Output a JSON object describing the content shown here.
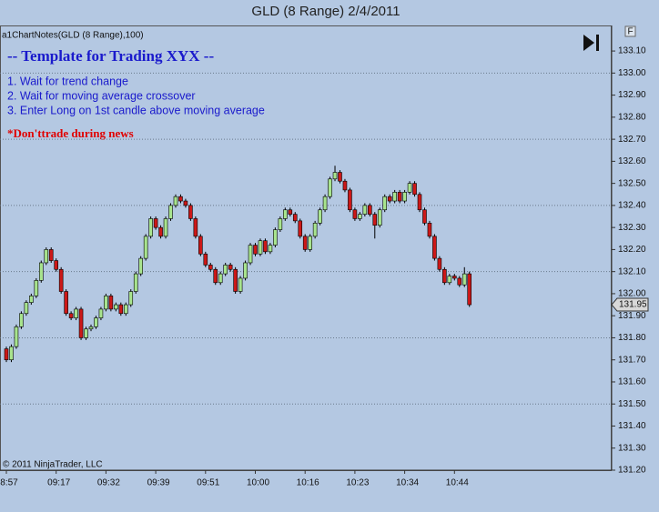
{
  "chart_data": {
    "type": "candlestick",
    "title": "GLD (8 Range)  2/4/2011",
    "indicator_label": "a1ChartNotes(GLD (8 Range),100)",
    "annotations": {
      "heading": "-- Template for Trading XYX --",
      "items": [
        "1. Wait for trend change",
        "2. Wait for moving average crossover",
        "3. Enter Long on 1st candle above moving average"
      ],
      "warning": "*Don'ttrade during news"
    },
    "copyright": "© 2011 NinjaTrader, LLC",
    "button_label": "F",
    "last_price": 131.95,
    "up_color": "#a8e48e",
    "down_color": "#cc1818",
    "categories": [
      "8:57",
      null,
      null,
      null,
      null,
      null,
      null,
      null,
      null,
      null,
      "09:17",
      null,
      null,
      null,
      null,
      null,
      null,
      null,
      null,
      null,
      "09:32",
      null,
      null,
      null,
      null,
      null,
      null,
      null,
      null,
      null,
      "09:39",
      null,
      null,
      null,
      null,
      null,
      null,
      null,
      null,
      null,
      "09:51",
      null,
      null,
      null,
      null,
      null,
      null,
      null,
      null,
      null,
      "10:00",
      null,
      null,
      null,
      null,
      null,
      null,
      null,
      null,
      null,
      "10:16",
      null,
      null,
      null,
      null,
      null,
      null,
      null,
      null,
      null,
      "10:23",
      null,
      null,
      null,
      null,
      null,
      null,
      null,
      null,
      null,
      "10:34",
      null,
      null,
      null,
      null,
      null,
      null,
      null,
      null,
      null,
      "10:44",
      null,
      null,
      null
    ],
    "open": [
      131.75,
      131.7,
      131.76,
      131.85,
      131.91,
      131.96,
      131.99,
      132.06,
      132.14,
      132.2,
      132.15,
      132.11,
      132.01,
      131.91,
      131.89,
      131.93,
      131.8,
      131.84,
      131.85,
      131.89,
      131.93,
      131.99,
      131.93,
      131.95,
      131.91,
      131.95,
      132.01,
      132.09,
      132.16,
      132.26,
      132.34,
      132.3,
      132.26,
      132.34,
      132.4,
      132.44,
      132.42,
      132.4,
      132.34,
      132.26,
      132.18,
      132.13,
      132.11,
      132.05,
      132.09,
      132.13,
      132.11,
      132.01,
      132.07,
      132.14,
      132.22,
      132.18,
      132.24,
      132.19,
      132.22,
      132.29,
      132.34,
      132.38,
      132.36,
      132.33,
      132.26,
      132.2,
      132.26,
      132.32,
      132.38,
      132.44,
      132.52,
      132.55,
      132.51,
      132.47,
      132.38,
      132.34,
      132.36,
      132.4,
      132.36,
      132.31,
      132.38,
      132.44,
      132.42,
      132.46,
      132.42,
      132.46,
      132.5,
      132.45,
      132.38,
      132.32,
      132.26,
      132.16,
      132.11,
      132.05,
      132.08,
      132.07,
      132.04,
      132.09
    ],
    "high": [
      131.76,
      131.77,
      131.86,
      131.92,
      131.97,
      132.0,
      132.07,
      132.15,
      132.21,
      132.21,
      132.16,
      132.12,
      132.02,
      131.92,
      131.94,
      131.94,
      131.85,
      131.86,
      131.9,
      131.94,
      132.0,
      132.0,
      131.96,
      131.96,
      131.96,
      132.02,
      132.1,
      132.17,
      132.27,
      132.35,
      132.35,
      132.31,
      132.35,
      132.41,
      132.45,
      132.45,
      132.43,
      132.41,
      132.35,
      132.27,
      132.19,
      132.14,
      132.12,
      132.1,
      132.14,
      132.14,
      132.12,
      132.08,
      132.15,
      132.23,
      132.23,
      132.25,
      132.25,
      132.23,
      132.3,
      132.35,
      132.39,
      132.39,
      132.37,
      132.34,
      132.27,
      132.27,
      132.33,
      132.39,
      132.45,
      132.53,
      132.58,
      132.56,
      132.52,
      132.48,
      132.39,
      132.37,
      132.41,
      132.41,
      132.37,
      132.39,
      132.45,
      132.45,
      132.47,
      132.47,
      132.47,
      132.51,
      132.51,
      132.46,
      132.39,
      132.33,
      132.27,
      132.17,
      132.12,
      132.09,
      132.09,
      132.08,
      132.12,
      132.1
    ],
    "low": [
      131.69,
      131.69,
      131.75,
      131.84,
      131.9,
      131.95,
      131.98,
      132.05,
      132.13,
      132.14,
      132.1,
      132.0,
      131.9,
      131.88,
      131.88,
      131.79,
      131.79,
      131.83,
      131.84,
      131.88,
      131.92,
      131.92,
      131.92,
      131.9,
      131.9,
      131.94,
      132.0,
      132.08,
      132.15,
      132.25,
      132.29,
      132.25,
      132.25,
      132.33,
      132.39,
      132.41,
      132.39,
      132.33,
      132.25,
      132.17,
      132.12,
      132.1,
      132.04,
      132.04,
      132.08,
      132.1,
      132.0,
      132.0,
      132.06,
      132.13,
      132.17,
      132.17,
      132.18,
      132.18,
      132.21,
      132.28,
      132.33,
      132.35,
      132.32,
      132.25,
      132.19,
      132.19,
      132.25,
      132.31,
      132.37,
      132.43,
      132.51,
      132.5,
      132.46,
      132.37,
      132.33,
      132.33,
      132.35,
      132.35,
      132.25,
      132.3,
      132.37,
      132.41,
      132.41,
      132.41,
      132.41,
      132.45,
      132.44,
      132.37,
      132.31,
      132.25,
      132.15,
      132.1,
      132.04,
      132.04,
      132.06,
      132.03,
      132.03,
      131.94
    ],
    "close": [
      131.7,
      131.76,
      131.85,
      131.91,
      131.96,
      131.99,
      132.06,
      132.14,
      132.2,
      132.15,
      132.11,
      132.01,
      131.91,
      131.89,
      131.93,
      131.8,
      131.84,
      131.85,
      131.89,
      131.93,
      131.99,
      131.93,
      131.95,
      131.91,
      131.95,
      132.01,
      132.09,
      132.16,
      132.26,
      132.34,
      132.3,
      132.26,
      132.34,
      132.4,
      132.44,
      132.42,
      132.4,
      132.34,
      132.26,
      132.18,
      132.13,
      132.11,
      132.05,
      132.09,
      132.13,
      132.11,
      132.01,
      132.07,
      132.14,
      132.22,
      132.18,
      132.24,
      132.19,
      132.22,
      132.29,
      132.34,
      132.38,
      132.36,
      132.33,
      132.26,
      132.2,
      132.26,
      132.32,
      132.38,
      132.44,
      132.52,
      132.55,
      132.51,
      132.47,
      132.38,
      132.34,
      132.36,
      132.4,
      132.36,
      132.31,
      132.38,
      132.44,
      132.42,
      132.46,
      132.42,
      132.46,
      132.5,
      132.45,
      132.38,
      132.32,
      132.26,
      132.16,
      132.11,
      132.05,
      132.08,
      132.07,
      132.04,
      132.09,
      131.95
    ],
    "ylim": [
      131.2,
      133.21
    ],
    "yticks": [
      {
        "value": 131.2,
        "label": "131.20"
      },
      {
        "value": 131.3,
        "label": "131.30"
      },
      {
        "value": 131.4,
        "label": "131.40"
      },
      {
        "value": 131.5,
        "label": "131.50"
      },
      {
        "value": 131.6,
        "label": "131.60"
      },
      {
        "value": 131.7,
        "label": "131.70"
      },
      {
        "value": 131.8,
        "label": "131.80"
      },
      {
        "value": 131.9,
        "label": "131.90"
      },
      {
        "value": 132.0,
        "label": "132.00"
      },
      {
        "value": 132.1,
        "label": "132.10"
      },
      {
        "value": 132.2,
        "label": "132.20"
      },
      {
        "value": 132.3,
        "label": "132.30"
      },
      {
        "value": 132.4,
        "label": "132.40"
      },
      {
        "value": 132.5,
        "label": "132.50"
      },
      {
        "value": 132.6,
        "label": "132.60"
      },
      {
        "value": 132.7,
        "label": "132.70"
      },
      {
        "value": 132.8,
        "label": "132.80"
      },
      {
        "value": 132.9,
        "label": "132.90"
      },
      {
        "value": 133.0,
        "label": "133.00"
      },
      {
        "value": 133.1,
        "label": "133.10"
      }
    ],
    "ygrid": [
      133.0,
      132.7,
      132.4,
      132.1,
      131.8,
      131.5
    ]
  }
}
